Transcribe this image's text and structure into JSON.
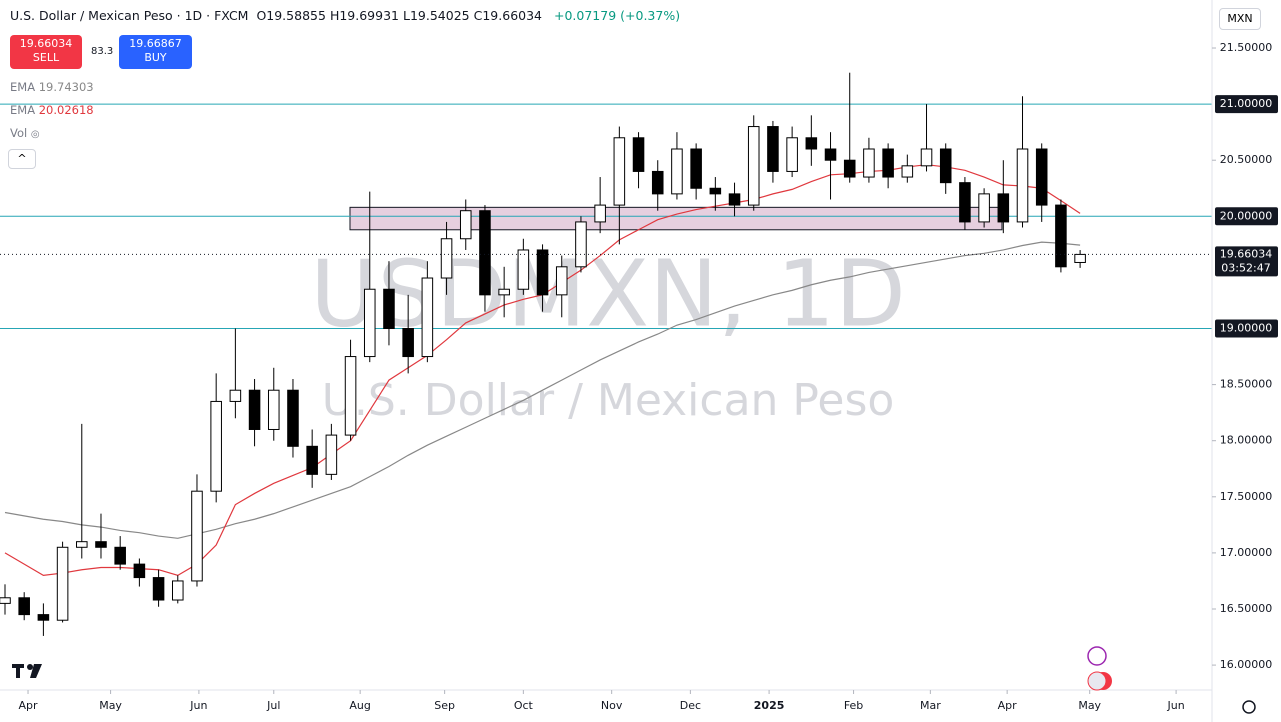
{
  "header": {
    "title": "U.S. Dollar / Mexican Peso · 1D · FXCM",
    "keys": [
      "O",
      "H",
      "L",
      "C"
    ],
    "change": "+0.07179 (+0.37%)",
    "sell": {
      "price": "19.66034",
      "label": "SELL"
    },
    "spread": "83.3",
    "buy": {
      "price": "19.66867",
      "label": "BUY"
    },
    "vol": "Vol",
    "currency": "MXN",
    "countdown": "03:52:47",
    "watermark": "USDMXN, 1D",
    "watermark_sub": "U.S. Dollar / Mexican Peso"
  },
  "chart_data": {
    "type": "candlestick",
    "open": [
      16.55,
      16.6,
      16.45,
      16.4,
      17.05,
      17.1,
      17.05,
      16.9,
      16.78,
      16.58,
      16.75,
      17.55,
      18.35,
      18.45,
      18.1,
      18.45,
      17.95,
      17.7,
      18.05,
      18.75,
      19.35,
      19.0,
      18.75,
      19.45,
      19.8,
      20.05,
      19.3,
      19.35,
      19.7,
      19.3,
      19.55,
      19.95,
      20.1,
      20.7,
      20.4,
      20.2,
      20.6,
      20.25,
      20.2,
      20.1,
      20.8,
      20.4,
      20.7,
      20.6,
      20.5,
      20.35,
      20.6,
      20.35,
      20.45,
      20.6,
      20.3,
      19.95,
      20.2,
      19.95,
      20.6,
      20.1,
      19.58855
    ],
    "high": [
      16.72,
      16.65,
      16.55,
      17.1,
      18.15,
      17.35,
      17.15,
      16.95,
      16.85,
      16.8,
      17.7,
      18.6,
      19.0,
      18.55,
      18.65,
      18.55,
      18.1,
      18.15,
      18.9,
      20.22,
      19.6,
      19.3,
      19.6,
      19.95,
      20.15,
      20.1,
      19.55,
      19.8,
      19.75,
      19.65,
      20.0,
      20.35,
      20.8,
      20.75,
      20.5,
      20.75,
      20.65,
      20.35,
      20.3,
      20.9,
      20.85,
      20.8,
      20.9,
      20.75,
      21.28,
      20.7,
      20.65,
      20.55,
      21.0,
      20.65,
      20.35,
      20.25,
      20.5,
      21.07,
      20.65,
      20.15,
      19.69931
    ],
    "low": [
      16.45,
      16.4,
      16.26,
      16.38,
      16.95,
      16.95,
      16.85,
      16.7,
      16.52,
      16.55,
      16.7,
      17.45,
      18.2,
      17.95,
      18.0,
      17.85,
      17.58,
      17.65,
      18.0,
      18.7,
      18.85,
      18.6,
      18.7,
      19.3,
      19.7,
      19.15,
      19.1,
      19.3,
      19.15,
      19.1,
      19.5,
      19.85,
      19.75,
      20.25,
      20.05,
      20.15,
      20.15,
      20.05,
      20.0,
      20.05,
      20.3,
      20.35,
      20.45,
      20.15,
      20.3,
      20.3,
      20.25,
      20.3,
      20.4,
      20.2,
      19.88,
      19.9,
      19.85,
      19.9,
      19.95,
      19.5,
      19.54025
    ],
    "close": [
      16.6,
      16.45,
      16.4,
      17.05,
      17.1,
      17.05,
      16.9,
      16.78,
      16.58,
      16.75,
      17.55,
      18.35,
      18.45,
      18.1,
      18.45,
      17.95,
      17.7,
      18.05,
      18.75,
      19.35,
      19.0,
      18.75,
      19.45,
      19.8,
      20.05,
      19.3,
      19.35,
      19.7,
      19.3,
      19.55,
      19.95,
      20.1,
      20.7,
      20.4,
      20.2,
      20.6,
      20.25,
      20.2,
      20.1,
      20.8,
      20.4,
      20.7,
      20.6,
      20.5,
      20.35,
      20.6,
      20.35,
      20.45,
      20.6,
      20.3,
      19.95,
      20.2,
      19.95,
      20.6,
      20.1,
      19.55,
      19.66034
    ],
    "up_color": "#ffffff",
    "down_color": "#000000",
    "series": [
      {
        "name": "EMA",
        "color": "#888888",
        "values": [
          17.36,
          17.33,
          17.3,
          17.28,
          17.25,
          17.23,
          17.2,
          17.18,
          17.15,
          17.13,
          17.17,
          17.21,
          17.26,
          17.3,
          17.35,
          17.41,
          17.47,
          17.53,
          17.59,
          17.68,
          17.77,
          17.87,
          17.96,
          18.04,
          18.12,
          18.2,
          18.28,
          18.36,
          18.45,
          18.54,
          18.63,
          18.72,
          18.8,
          18.88,
          18.95,
          19.03,
          19.08,
          19.14,
          19.2,
          19.25,
          19.3,
          19.34,
          19.39,
          19.43,
          19.46,
          19.5,
          19.53,
          19.56,
          19.59,
          19.62,
          19.65,
          19.67,
          19.7,
          19.74,
          19.77,
          19.76,
          19.74303
        ]
      },
      {
        "name": "EMA",
        "color": "#e0383e",
        "values": [
          17.0,
          16.9,
          16.8,
          16.82,
          16.85,
          16.87,
          16.87,
          16.86,
          16.85,
          16.8,
          16.9,
          17.07,
          17.43,
          17.53,
          17.62,
          17.69,
          17.76,
          17.88,
          18.0,
          18.27,
          18.54,
          18.65,
          18.76,
          18.9,
          19.05,
          19.13,
          19.21,
          19.26,
          19.3,
          19.41,
          19.52,
          19.65,
          19.79,
          19.88,
          19.97,
          20.02,
          20.06,
          20.09,
          20.12,
          20.15,
          20.2,
          20.24,
          20.31,
          20.37,
          20.38,
          20.4,
          20.41,
          20.44,
          20.46,
          20.44,
          20.41,
          20.35,
          20.28,
          20.27,
          20.25,
          20.14,
          20.02618
        ]
      }
    ],
    "hlines": [
      {
        "value": 21,
        "label": "21.00000"
      },
      {
        "value": 20,
        "label": "20.00000"
      },
      {
        "value": 19,
        "label": "19.00000"
      }
    ],
    "hline_color": "#26a6b5",
    "zone": {
      "start": 17.97,
      "end": 51.93,
      "low": 19.88,
      "high": 20.08,
      "color": "#e2c7d9"
    },
    "xlim": [
      -0.26,
      62.87
    ],
    "ylim": [
      15.778,
      21.928
    ],
    "yticks": [
      {
        "value": 21.5,
        "label": "21.50000"
      },
      {
        "value": 20.5,
        "label": "20.50000"
      },
      {
        "value": 18.5,
        "label": "18.50000"
      },
      {
        "value": 18,
        "label": "18.00000"
      },
      {
        "value": 17.5,
        "label": "17.50000"
      },
      {
        "value": 17,
        "label": "17.00000"
      },
      {
        "value": 16.5,
        "label": "16.50000"
      },
      {
        "value": 16,
        "label": "16.00000"
      }
    ],
    "xticks": [
      {
        "value": 1.2,
        "label": "Apr"
      },
      {
        "value": 5.5,
        "label": "May"
      },
      {
        "value": 10.1,
        "label": "Jun"
      },
      {
        "value": 14,
        "label": "Jul"
      },
      {
        "value": 18.5,
        "label": "Aug"
      },
      {
        "value": 22.9,
        "label": "Sep"
      },
      {
        "value": 27,
        "label": "Oct"
      },
      {
        "value": 31.6,
        "label": "Nov"
      },
      {
        "value": 35.7,
        "label": "Dec"
      },
      {
        "value": 39.8,
        "label": "2025"
      },
      {
        "value": 44.2,
        "label": "Feb"
      },
      {
        "value": 48.2,
        "label": "Mar"
      },
      {
        "value": 52.2,
        "label": "Apr"
      },
      {
        "value": 56.5,
        "label": "May"
      },
      {
        "value": 61,
        "label": "Jun"
      }
    ]
  }
}
